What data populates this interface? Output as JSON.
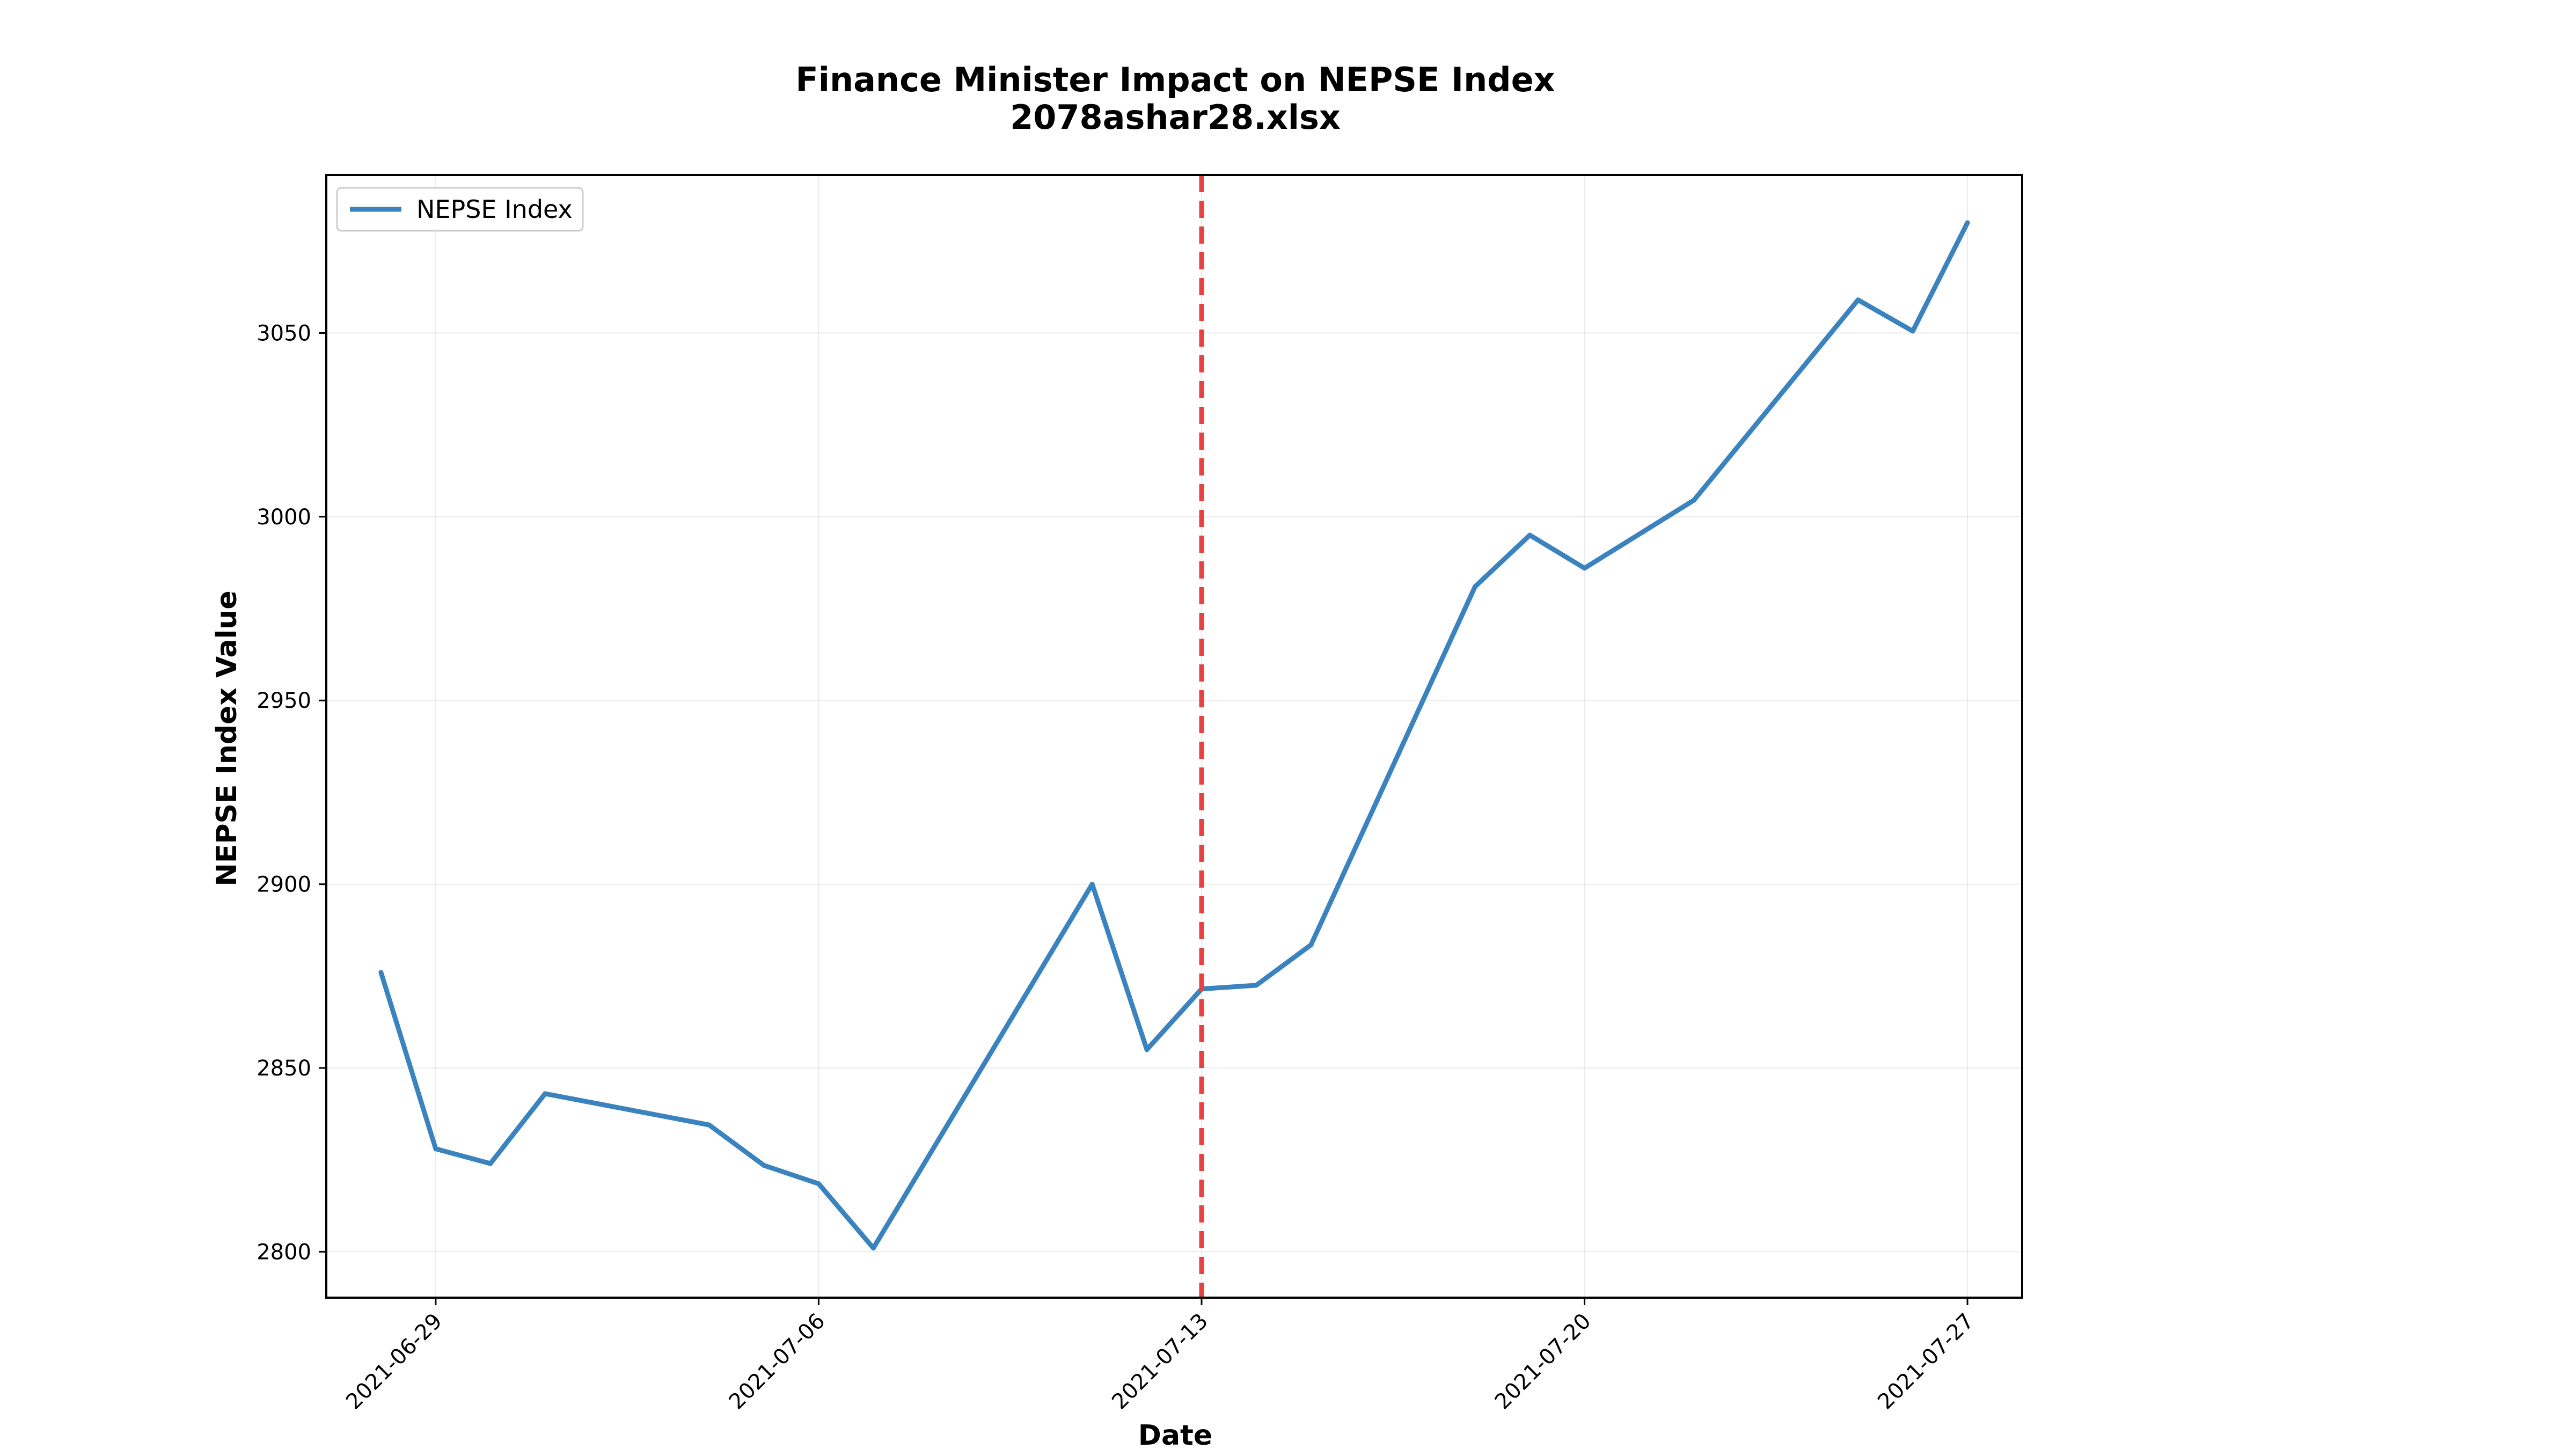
{
  "chart_data": {
    "type": "line",
    "title": "Finance Minister Impact on NEPSE Index",
    "subtitle": "2078ashar28.xlsx",
    "xlabel": "Date",
    "ylabel": "NEPSE Index Value",
    "xlim": [
      "2021-06-27",
      "2021-07-28"
    ],
    "ylim": [
      2787.5,
      3093
    ],
    "x_ticks": [
      "2021-06-29",
      "2021-07-06",
      "2021-07-13",
      "2021-07-20",
      "2021-07-27"
    ],
    "y_ticks": [
      2800,
      2850,
      2900,
      2950,
      3000,
      3050
    ],
    "grid": true,
    "legend_position": "upper left",
    "series": [
      {
        "name": "NEPSE Index",
        "color": "#3a83bf",
        "x": [
          "2021-06-28",
          "2021-06-29",
          "2021-06-30",
          "2021-07-01",
          "2021-07-04",
          "2021-07-05",
          "2021-07-06",
          "2021-07-07",
          "2021-07-11",
          "2021-07-12",
          "2021-07-13",
          "2021-07-14",
          "2021-07-15",
          "2021-07-18",
          "2021-07-19",
          "2021-07-20",
          "2021-07-22",
          "2021-07-25",
          "2021-07-26",
          "2021-07-27"
        ],
        "y": [
          2876,
          2828,
          2824,
          2843,
          2834.5,
          2823.5,
          2818.5,
          2801,
          2900,
          2855,
          2871.5,
          2872.5,
          2883.5,
          2981,
          2995,
          2986,
          3004.5,
          3059,
          3050.5,
          3080
        ]
      }
    ],
    "annotations": [
      {
        "type": "vline",
        "x": "2021-07-13",
        "style": "dashed",
        "color": "#e8413f"
      }
    ]
  }
}
